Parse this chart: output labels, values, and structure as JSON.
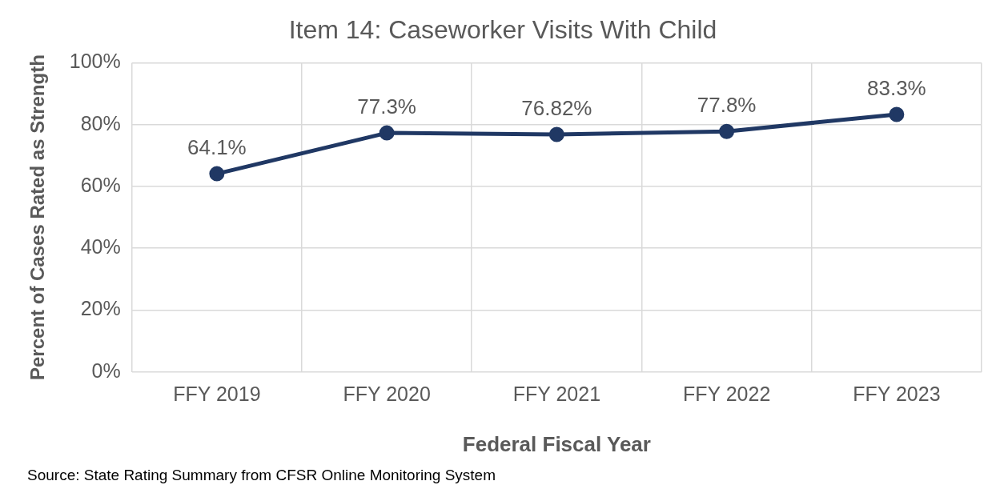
{
  "chart_data": {
    "type": "line",
    "title": "Item 14: Caseworker Visits With Child",
    "xlabel": "Federal Fiscal Year",
    "ylabel": "Percent of Cases Rated as Strength",
    "categories": [
      "FFY 2019",
      "FFY 2020",
      "FFY 2021",
      "FFY 2022",
      "FFY 2023"
    ],
    "series": [
      {
        "color": "#203864",
        "values": [
          64.1,
          77.3,
          76.82,
          77.8,
          83.3
        ],
        "value_labels": [
          "64.1%",
          "77.3%",
          "76.82%",
          "77.8%",
          "83.3%"
        ]
      }
    ],
    "ylim": [
      0,
      100
    ],
    "yticks": [
      {
        "value": 0,
        "label": "0%"
      },
      {
        "value": 20,
        "label": "20%"
      },
      {
        "value": 40,
        "label": "40%"
      },
      {
        "value": 60,
        "label": "60%"
      },
      {
        "value": 80,
        "label": "80%"
      },
      {
        "value": 100,
        "label": "100%"
      }
    ],
    "grid": true,
    "marker": "circle",
    "line_style": "solid",
    "legend": false,
    "annotations": [
      "Source: State Rating Summary from CFSR Online Monitoring System"
    ]
  }
}
